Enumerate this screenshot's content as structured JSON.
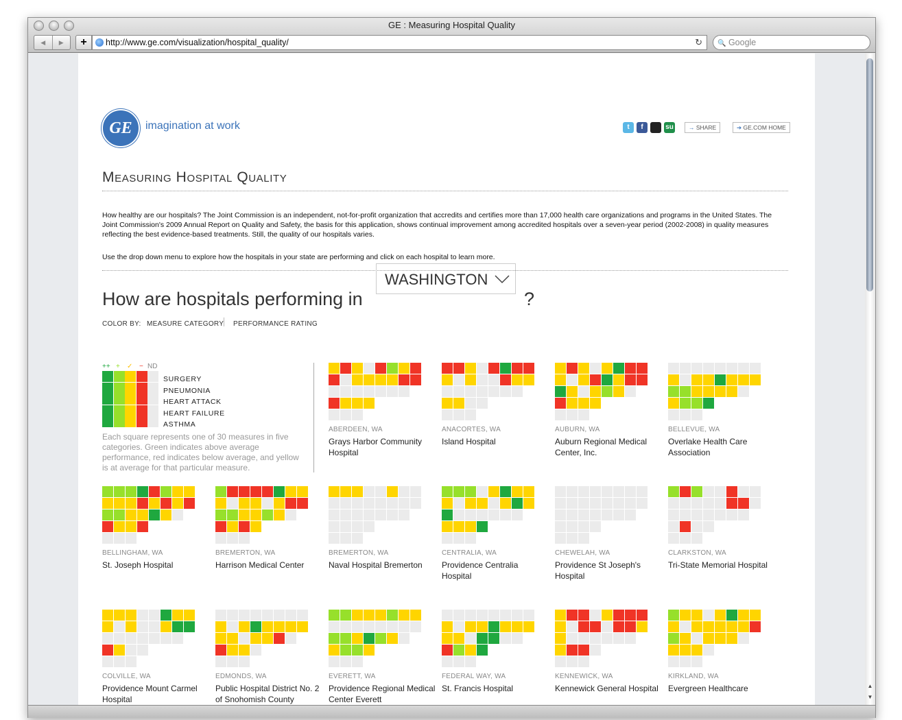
{
  "browser": {
    "title": "GE : Measuring Hospital Quality",
    "url": "http://www.ge.com/visualization/hospital_quality/",
    "search_placeholder": "Google",
    "back": "◀",
    "forward": "▶",
    "new_tab": "+",
    "reload": "↻",
    "search_icon": "🔍"
  },
  "header": {
    "logo_text": "GE",
    "tagline": "imagination at work",
    "social": [
      {
        "name": "twitter",
        "glyph": "t",
        "color": "#5bb7e6"
      },
      {
        "name": "facebook",
        "glyph": "f",
        "color": "#3b5998"
      },
      {
        "name": "delicious",
        "glyph": "",
        "color": "#222222"
      },
      {
        "name": "stumbleupon",
        "glyph": "su",
        "color": "#1f8f4a"
      }
    ],
    "share_label": "SHARE",
    "home_label": "GE.COM HOME",
    "arrow": "➔"
  },
  "page": {
    "title": "Measuring Hospital Quality",
    "intro": "How healthy are our hospitals? The Joint Commission is an independent, not-for-profit organization that accredits and certifies more than 17,000 health care organizations and programs in the United States. The Joint Commission's 2009 Annual Report on Quality and Safety, the basis for this application, shows continual improvement among accredited hospitals over a seven-year period (2002-2008) in quality measures reflecting the best evidence-based treatments. Still, the quality of our hospitals varies.",
    "instruction": "Use the drop down menu to explore how the hospitals in your state are performing and click on each hospital to learn more.",
    "question": "How are hospitals performing in",
    "state": "WASHINGTON",
    "question_mark": "?",
    "color_by_label": "COLOR BY:",
    "color_by_options": [
      "MEASURE CATEGORY",
      "PERFORMANCE RATING"
    ]
  },
  "colors": {
    "G": "#1fa83f",
    "L": "#97e02b",
    "Y": "#ffd500",
    "R": "#f03426",
    "N": "#ebebeb"
  },
  "legend": {
    "symbols": [
      {
        "t": "++",
        "c": "#1fa83f"
      },
      {
        "t": "+",
        "c": "#97e02b"
      },
      {
        "t": "✓",
        "c": "#ffc000"
      },
      {
        "t": "−",
        "c": "#f03426"
      },
      {
        "t": "ND",
        "c": "#888888"
      }
    ],
    "categories": [
      "SURGERY",
      "PNEUMONIA",
      "HEART ATTACK",
      "HEART FAILURE",
      "ASTHMA"
    ],
    "description": "Each square represents one of 30 measures in five categories. Green indicates above average performance, red indicates below average, and yellow is at average for that particular measure."
  },
  "hospitals": [
    {
      "location": "ABERDEEN, WA",
      "name": "Grays Harbor Community Hospital",
      "grid": [
        "YRYNRLYR",
        "RNYYYYRR",
        "NNNNNNN",
        "RYYY",
        "NNN"
      ]
    },
    {
      "location": "ANACORTES, WA",
      "name": "Island Hospital",
      "grid": [
        "RRYNRGRR",
        "YNYNNRYY",
        "NNNNNNN",
        "YYNN",
        "NNN"
      ]
    },
    {
      "location": "AUBURN, WA",
      "name": "Auburn Regional Medical Center, Inc.",
      "grid": [
        "YRYNYGRR",
        "YNYRGYRR",
        "GYNYLYN",
        "RYYY",
        "NNN"
      ]
    },
    {
      "location": "BELLEVUE, WA",
      "name": "Overlake Health Care Association",
      "grid": [
        "NNNNNNNN",
        "YNYYGYYY",
        "LLYYYYN",
        "YLLG",
        "NNN"
      ]
    },
    {
      "location": "BELLINGHAM, WA",
      "name": "St. Joseph Hospital",
      "grid": [
        "LLLGRLYY",
        "YYYRYRYR",
        "LLYYGYN",
        "RYYR",
        "NNN"
      ]
    },
    {
      "location": "BREMERTON, WA",
      "name": "Harrison Medical Center",
      "grid": [
        "LRRRRGYY",
        "YNYYNYRR",
        "LLYYLYN",
        "RYRY",
        "NNN"
      ]
    },
    {
      "location": "BREMERTON, WA",
      "name": "Naval Hospital Bremerton",
      "grid": [
        "YYYNNYNN",
        "NNNNNNNN",
        "NNNNNNN",
        "NNNN",
        "NNN"
      ]
    },
    {
      "location": "CENTRALIA, WA",
      "name": "Providence Centralia Hospital",
      "grid": [
        "LLLNYGYY",
        "YNYYNYGY",
        "GNNNNNN",
        "YYYG",
        "NNN"
      ]
    },
    {
      "location": "CHEWELAH, WA",
      "name": "Providence St Joseph's Hospital",
      "grid": [
        "NNNNNNNN",
        "NNNNNNNN",
        "NNNNNNN",
        "NNNN",
        "NNN"
      ]
    },
    {
      "location": "CLARKSTON, WA",
      "name": "Tri-State Memorial Hospital",
      "grid": [
        "LRLNNRNN",
        "NNNNNRRN",
        "NNNNNNN",
        "NRNN",
        "NNN"
      ]
    },
    {
      "location": "COLVILLE, WA",
      "name": "Providence Mount Carmel Hospital",
      "grid": [
        "YYYNNGYY",
        "YNYNNYGG",
        "NNNNNNN",
        "RYNN",
        "NNN"
      ]
    },
    {
      "location": "EDMONDS, WA",
      "name": "Public Hospital District No. 2 of Snohomish County",
      "grid": [
        "NNNNNNNN",
        "YNYGYYYY",
        "YYNYYRN",
        "RYYN",
        "NNN"
      ]
    },
    {
      "location": "EVERETT, WA",
      "name": "Providence Regional Medical Center Everett",
      "grid": [
        "LLYYYLYY",
        "NNNNNNNN",
        "LLYGLYN",
        "YLLY",
        "NNN"
      ]
    },
    {
      "location": "FEDERAL WAY, WA",
      "name": "St. Francis Hospital",
      "grid": [
        "NNNNNNNN",
        "YNYYGYYY",
        "YYNGGNN",
        "RLYG",
        "NNN"
      ]
    },
    {
      "location": "KENNEWICK, WA",
      "name": "Kennewick General Hospital",
      "grid": [
        "YRRNYRRR",
        "YNRRNRRY",
        "YNNNNNN",
        "YRRN",
        "NNN"
      ]
    },
    {
      "location": "KIRKLAND, WA",
      "name": "Evergreen Healthcare",
      "grid": [
        "LYYNYGYY",
        "YNYYYYYR",
        "LYNYYYN",
        "YYYN",
        "NNN"
      ]
    }
  ]
}
